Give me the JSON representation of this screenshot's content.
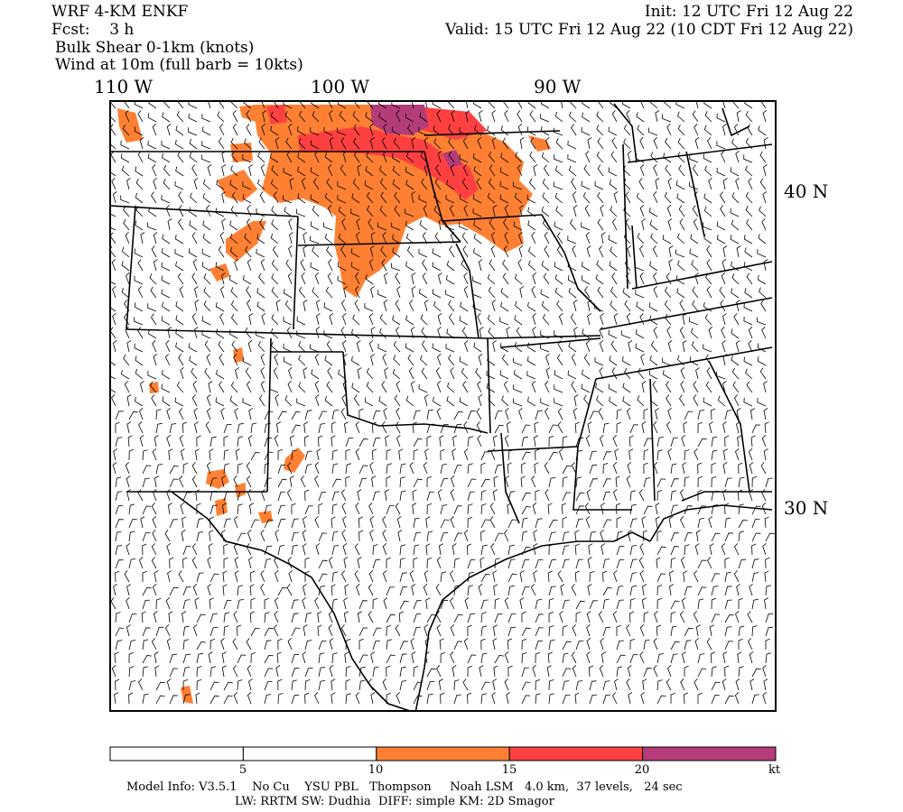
{
  "header": {
    "model": "WRF 4-KM ENKF",
    "fcst": "Fcst:    3 h",
    "field": "Bulk Shear 0-1km (knots)",
    "wind": "Wind at 10m (full barb = 10kts)",
    "init": "Init: 12 UTC Fri 12 Aug 22",
    "valid": "Valid: 15 UTC Fri 12 Aug 22 (10 CDT Fri 12 Aug 22)"
  },
  "axes": {
    "lon_labels": [
      "110 W",
      "100 W",
      "90 W"
    ],
    "lat_labels": [
      "40 N",
      "30 N"
    ]
  },
  "colorbar": {
    "ticks": [
      "5",
      "10",
      "15",
      "20"
    ],
    "unit": "kt",
    "colors": [
      "#ffffff",
      "#ffffff",
      "#ff8033",
      "#ff4040",
      "#b43c78"
    ]
  },
  "footer": {
    "line1": "Model Info: V3.5.1    No Cu    YSU PBL   Thompson     Noah LSM   4.0 km,  37 levels,   24 sec",
    "line2": "LW: RRTM SW: Dudhia  DIFF: simple KM: 2D Smagor"
  },
  "map_colors": {
    "shade_10_15": "#ff8033",
    "shade_15_20": "#ff4040",
    "shade_20_plus": "#b43c78",
    "border": "#000000",
    "barb": "#000000"
  }
}
